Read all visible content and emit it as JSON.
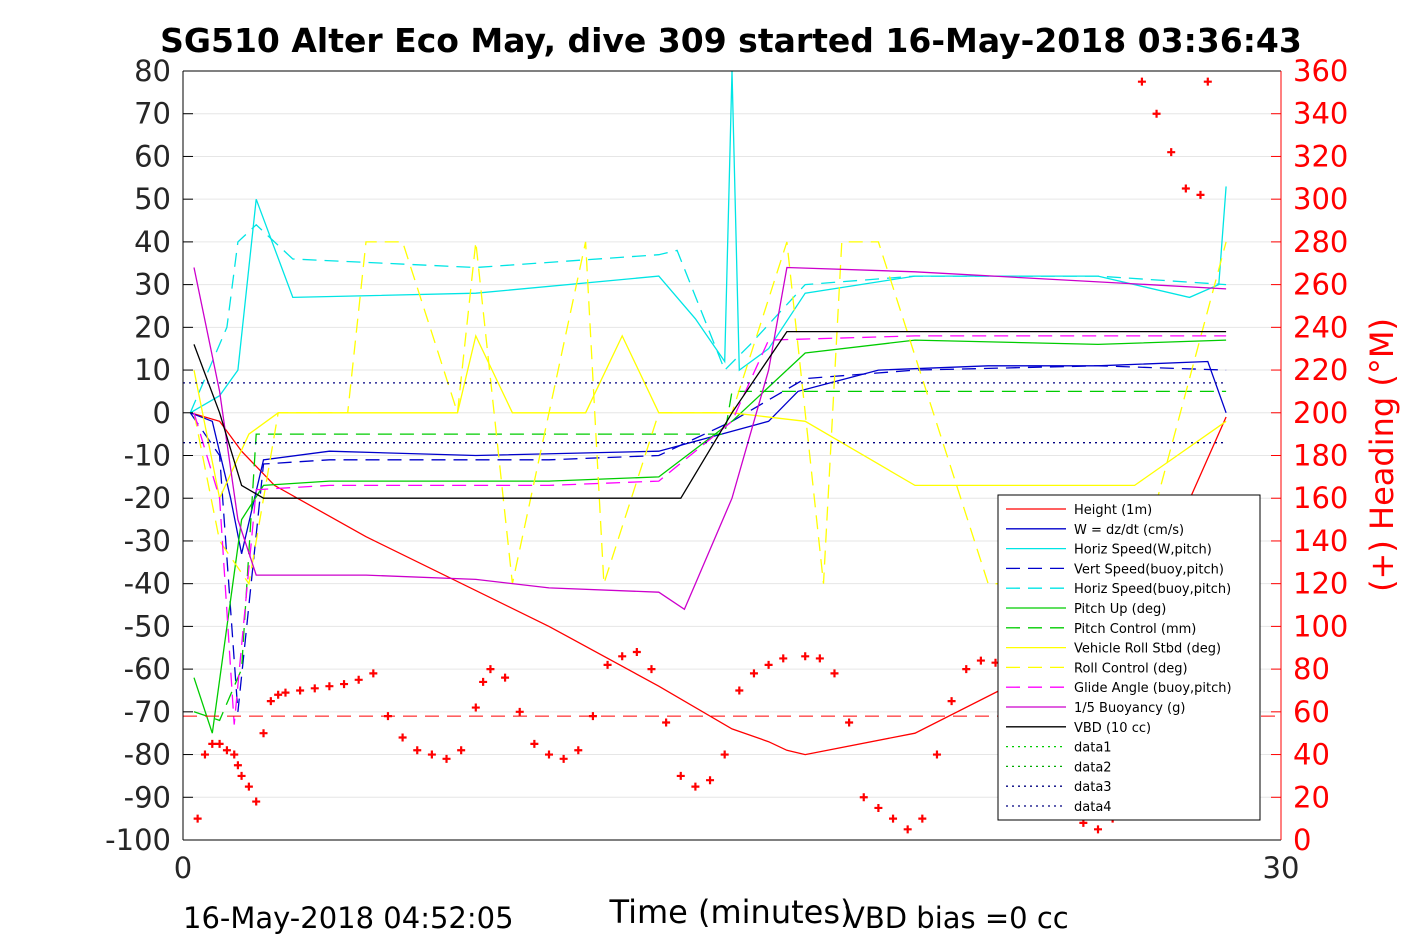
{
  "chart_data": {
    "type": "line",
    "title": "SG510 Alter Eco May, dive 309 started 16-May-2018 03:36:43",
    "xlabel": "Time (minutes)",
    "ylabel_right": "(+) Heading (°M)",
    "xlim": [
      0,
      30
    ],
    "ylim": [
      -100,
      80
    ],
    "ylim_right": [
      0,
      360
    ],
    "x_ticks": [
      "0",
      "30"
    ],
    "y_ticks": [
      "80",
      "70",
      "60",
      "50",
      "40",
      "30",
      "20",
      "10",
      "0",
      "-10",
      "-20",
      "-30",
      "-40",
      "-50",
      "-60",
      "-70",
      "-80",
      "-90",
      "-100"
    ],
    "y_ticks_right": [
      "360",
      "340",
      "320",
      "300",
      "280",
      "260",
      "240",
      "220",
      "200",
      "180",
      "160",
      "140",
      "120",
      "100",
      "80",
      "60",
      "40",
      "20",
      "0"
    ],
    "footer_left": "16-May-2018 04:52:05",
    "footer_right": "VBD bias =0 cc",
    "legend_position": "lower-right",
    "grid": true,
    "colors": {
      "height": "#ff0000",
      "w": "#0000cc",
      "horiz": "#00e5e5",
      "pitch": "#00cc00",
      "roll": "#ffff00",
      "glide": "#ff00ff",
      "buoy": "#cc00cc",
      "vbd": "#000000",
      "heading": "#ff0000",
      "right_axis": "#ff0000"
    },
    "series": [
      {
        "name": "Height (1m)",
        "color": "#ff0000",
        "style": "solid",
        "x": [
          0.2,
          1.0,
          1.6,
          2.5,
          5,
          10,
          13,
          15,
          16,
          16.5,
          17,
          20,
          23,
          25,
          27,
          28.5
        ],
        "y": [
          0,
          -2,
          -9,
          -17,
          -29,
          -50,
          -64,
          -74,
          -77,
          -79,
          -80,
          -75,
          -62,
          -48,
          -30,
          -1
        ]
      },
      {
        "name": "W = dz/dt (cm/s)",
        "color": "#0000cc",
        "style": "solid",
        "x": [
          0.2,
          0.8,
          1.3,
          1.6,
          2.2,
          4,
          8,
          13,
          16,
          16.8,
          19,
          22,
          25,
          28,
          28.5
        ],
        "y": [
          0,
          -2,
          -20,
          -33,
          -11,
          -9,
          -10,
          -9,
          -2,
          5,
          10,
          11,
          11,
          12,
          0
        ]
      },
      {
        "name": "Horiz Speed(W,pitch)",
        "color": "#00e5e5",
        "style": "solid",
        "x": [
          0.2,
          1.0,
          1.5,
          2.0,
          3,
          8,
          13,
          14,
          14.8,
          15,
          15.2,
          16,
          17,
          20,
          25,
          27.5,
          28.3,
          28.5
        ],
        "y": [
          0,
          4,
          10,
          50,
          27,
          28,
          32,
          22,
          12,
          80,
          10,
          15,
          28,
          32,
          32,
          27,
          30,
          53
        ]
      },
      {
        "name": "Vert Speed(buoy,pitch)",
        "color": "#0000cc",
        "style": "dashed",
        "x": [
          0.2,
          1.0,
          1.5,
          2.2,
          4,
          10,
          13,
          15,
          17,
          20,
          25,
          28.5
        ],
        "y": [
          0,
          -10,
          -70,
          -12,
          -11,
          -11,
          -10,
          -2,
          8,
          10,
          11,
          10
        ]
      },
      {
        "name": "Horiz Speed(buoy,pitch)",
        "color": "#00e5e5",
        "style": "dashed",
        "x": [
          0.2,
          1.2,
          1.5,
          2.0,
          3,
          8,
          13,
          13.5,
          14.8,
          15.5,
          17,
          20,
          25,
          28.5
        ],
        "y": [
          0,
          20,
          40,
          44,
          36,
          34,
          37,
          38,
          10,
          16,
          30,
          32,
          32,
          30
        ]
      },
      {
        "name": "Pitch Up (deg)",
        "color": "#00cc00",
        "style": "solid",
        "x": [
          0.3,
          0.8,
          1.6,
          2.2,
          4,
          10,
          13,
          15,
          17,
          20,
          25,
          28.5
        ],
        "y": [
          -62,
          -75,
          -25,
          -17,
          -16,
          -16,
          -15,
          -2,
          14,
          17,
          16,
          17
        ]
      },
      {
        "name": "Pitch Control (mm)",
        "color": "#00cc00",
        "style": "dashed",
        "x": [
          0.3,
          1.0,
          1.6,
          2.0,
          4,
          13,
          14.8,
          15,
          17,
          28.5
        ],
        "y": [
          -70,
          -72,
          -60,
          -5,
          -5,
          -5,
          -5,
          5,
          5,
          5
        ]
      },
      {
        "name": "Vehicle Roll Stbd (deg)",
        "color": "#ffff00",
        "style": "solid",
        "x": [
          0.3,
          1.0,
          1.8,
          2.6,
          5,
          7.5,
          8,
          9,
          9.5,
          11,
          12,
          13,
          13.5,
          15,
          17,
          20,
          26,
          28.5
        ],
        "y": [
          10,
          -20,
          -5,
          0,
          0,
          0,
          18,
          0,
          0,
          0,
          18,
          0,
          0,
          0,
          -2,
          -17,
          -17,
          -2
        ]
      },
      {
        "name": "Roll Control (deg)",
        "color": "#ffff00",
        "style": "dashed",
        "x": [
          0.3,
          1.0,
          1.8,
          2.6,
          4.5,
          5,
          6,
          7.5,
          8,
          9,
          11,
          11.5,
          13,
          14.5,
          15,
          16.5,
          17.5,
          18,
          19,
          22,
          26,
          28.5
        ],
        "y": [
          0,
          -30,
          -40,
          0,
          0,
          40,
          40,
          0,
          40,
          -40,
          40,
          -40,
          0,
          0,
          0,
          40,
          -40,
          40,
          40,
          -40,
          -40,
          40
        ]
      },
      {
        "name": "Glide Angle (buoy,pitch)",
        "color": "#ff00ff",
        "style": "dashed",
        "x": [
          0.3,
          1.0,
          1.4,
          2.0,
          4,
          10,
          13,
          15,
          16,
          20,
          25,
          28.5
        ],
        "y": [
          0,
          -20,
          -73,
          -18,
          -17,
          -17,
          -16,
          -2,
          17,
          18,
          18,
          18
        ]
      },
      {
        "name": "1/5 Buoyancy (g)",
        "color": "#cc00cc",
        "style": "solid",
        "x": [
          0.3,
          1.0,
          1.5,
          2.0,
          5,
          8,
          10,
          13,
          13.7,
          14,
          15,
          16,
          16.5,
          20,
          28.5
        ],
        "y": [
          34,
          5,
          -25,
          -38,
          -38,
          -39,
          -41,
          -42,
          -46,
          -40,
          -20,
          10,
          34,
          33,
          29
        ]
      },
      {
        "name": "VBD (10 cc)",
        "color": "#000000",
        "style": "solid",
        "x": [
          0.3,
          1.0,
          1.6,
          2.2,
          4,
          10,
          13.6,
          15,
          16.5,
          20,
          28.5
        ],
        "y": [
          16,
          0,
          -17,
          -20,
          -20,
          -20,
          -20,
          0,
          19,
          19,
          19
        ]
      },
      {
        "name": "data1",
        "color": "#00cc00",
        "style": "dotted",
        "x": [],
        "y": []
      },
      {
        "name": "data2",
        "color": "#00aa00",
        "style": "dotted",
        "x": [],
        "y": []
      },
      {
        "name": "data3",
        "color": "#000080",
        "style": "dotted",
        "x": [
          0,
          28.5
        ],
        "y": [
          7,
          7
        ]
      },
      {
        "name": "data4",
        "color": "#000080",
        "style": "dotted",
        "x": [
          0,
          28.5
        ],
        "y": [
          -7,
          -7
        ]
      }
    ],
    "heading_reference_deg": 58,
    "heading_points_deg": {
      "x": [
        0.4,
        0.6,
        0.8,
        1.0,
        1.2,
        1.4,
        1.5,
        1.6,
        1.8,
        2.0,
        2.2,
        2.4,
        2.6,
        2.8,
        3.2,
        3.6,
        4.0,
        4.4,
        4.8,
        5.2,
        5.6,
        6.0,
        6.4,
        6.8,
        7.2,
        7.6,
        8.0,
        8.2,
        8.4,
        8.8,
        9.2,
        9.6,
        10.0,
        10.4,
        10.8,
        11.2,
        11.6,
        12.0,
        12.4,
        12.8,
        13.2,
        13.6,
        14.0,
        14.4,
        14.8,
        15.2,
        15.6,
        16.0,
        16.4,
        17.0,
        17.4,
        17.8,
        18.2,
        18.6,
        19.0,
        19.4,
        19.8,
        20.2,
        20.6,
        21.0,
        21.4,
        21.8,
        22.2,
        22.6,
        23.0,
        23.4,
        23.8,
        24.2,
        24.6,
        25.0,
        25.4,
        25.8,
        26.2,
        26.6,
        27.0,
        27.4,
        27.8,
        28.0
      ],
      "y": [
        10,
        40,
        45,
        45,
        42,
        40,
        35,
        30,
        25,
        18,
        50,
        65,
        68,
        69,
        70,
        71,
        72,
        73,
        75,
        78,
        58,
        48,
        42,
        40,
        38,
        42,
        62,
        74,
        80,
        76,
        60,
        45,
        40,
        38,
        42,
        58,
        82,
        86,
        88,
        80,
        55,
        30,
        25,
        28,
        40,
        70,
        78,
        82,
        85,
        86,
        85,
        78,
        55,
        20,
        15,
        10,
        5,
        10,
        40,
        65,
        80,
        84,
        83,
        80,
        60,
        40,
        25,
        15,
        8,
        5,
        10,
        20,
        355,
        340,
        322,
        305,
        302,
        355
      ]
    }
  }
}
